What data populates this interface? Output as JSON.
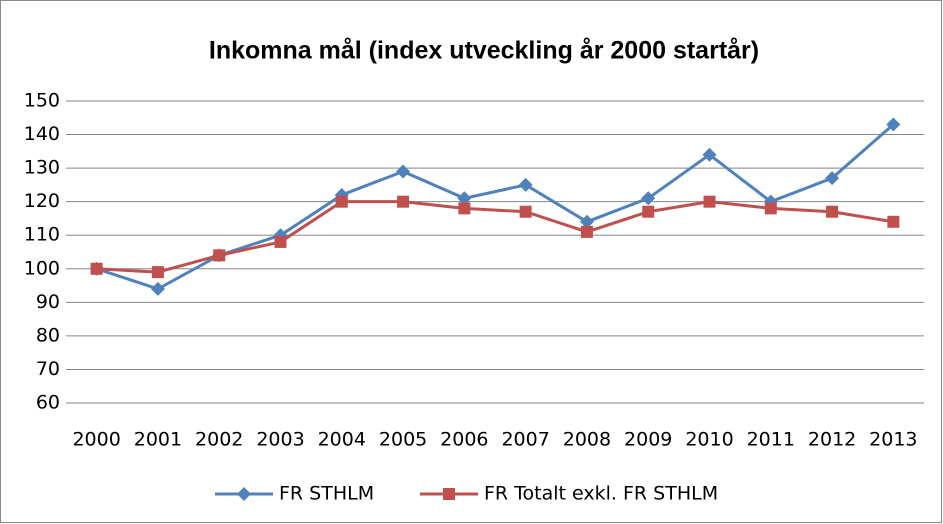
{
  "chart_data": {
    "type": "line",
    "title": "Inkomna mål (index utveckling år 2000 startår)",
    "categories": [
      "2000",
      "2001",
      "2002",
      "2003",
      "2004",
      "2005",
      "2006",
      "2007",
      "2008",
      "2009",
      "2010",
      "2011",
      "2012",
      "2013"
    ],
    "series": [
      {
        "name": "FR STHLM",
        "color": "#4f81bd",
        "marker": "diamond",
        "values": [
          100,
          94,
          104,
          110,
          122,
          129,
          121,
          125,
          114,
          121,
          134,
          120,
          127,
          143
        ]
      },
      {
        "name": "FR Totalt exkl. FR STHLM",
        "color": "#c0504d",
        "marker": "square",
        "values": [
          100,
          99,
          104,
          108,
          120,
          120,
          118,
          117,
          111,
          117,
          120,
          118,
          117,
          114
        ]
      }
    ],
    "ylim": [
      60,
      150
    ],
    "yticks": [
      60,
      70,
      80,
      90,
      100,
      110,
      120,
      130,
      140,
      150
    ],
    "grid": true,
    "legend": "bottom"
  }
}
